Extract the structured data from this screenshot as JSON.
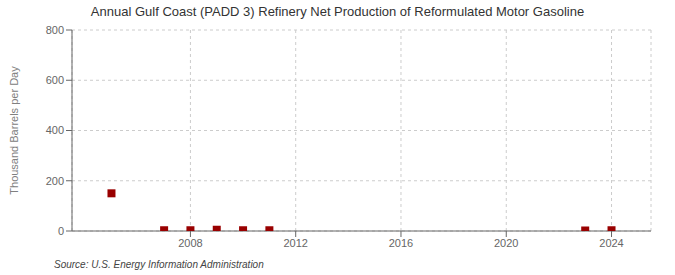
{
  "chart_data": {
    "type": "scatter",
    "title": "Annual Gulf Coast (PADD 3) Refinery Net Production of Reformulated Motor Gasoline",
    "ylabel": "Thousand Barrels per Day",
    "annotations": [
      "Source: U.S. Energy Information Administration"
    ],
    "x": [
      2005,
      2007,
      2008,
      2009,
      2010,
      2011,
      2023,
      2024
    ],
    "values": [
      150,
      3,
      3,
      5,
      3,
      3,
      2,
      3
    ],
    "color": "#990000",
    "marker": "square",
    "xlim": [
      2003.5,
      2025.5
    ],
    "ylim": [
      0,
      800
    ],
    "xticks": [
      2008,
      2012,
      2016,
      2020,
      2024
    ],
    "yticks": [
      0,
      200,
      400,
      600,
      800
    ],
    "grid": true
  }
}
